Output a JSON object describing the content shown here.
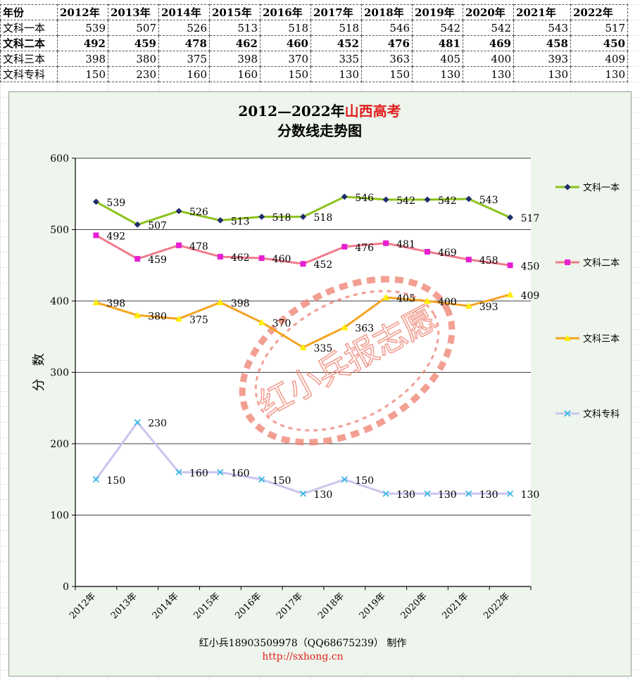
{
  "table": {
    "header": [
      "年份",
      "2012年",
      "2013年",
      "2014年",
      "2015年",
      "2016年",
      "2017年",
      "2018年",
      "2019年",
      "2020年",
      "2021年",
      "2022年"
    ],
    "rows": [
      {
        "label": "文科一本",
        "values": [
          "539",
          "507",
          "526",
          "513",
          "518",
          "518",
          "546",
          "542",
          "542",
          "543",
          "517"
        ]
      },
      {
        "label": "文科二本",
        "values": [
          "492",
          "459",
          "478",
          "462",
          "460",
          "452",
          "476",
          "481",
          "469",
          "458",
          "450"
        ]
      },
      {
        "label": "文科三本",
        "values": [
          "398",
          "380",
          "375",
          "398",
          "370",
          "335",
          "363",
          "405",
          "400",
          "393",
          "409"
        ]
      },
      {
        "label": "文科专科",
        "values": [
          "150",
          "230",
          "160",
          "160",
          "150",
          "130",
          "150",
          "130",
          "130",
          "130",
          "130"
        ]
      }
    ]
  },
  "chart_data": {
    "type": "line",
    "title": "2012—2022年山西高考",
    "title_parts": {
      "lead": "2012—2022年",
      "accent": "山西高考"
    },
    "subtitle": "分数线走势图",
    "ylabel": "分　数",
    "ylim": [
      0,
      600
    ],
    "yticks": [
      "0",
      "100",
      "200",
      "300",
      "400",
      "500",
      "600"
    ],
    "categories": [
      "2012年",
      "2013年",
      "2014年",
      "2015年",
      "2016年",
      "2017年",
      "2018年",
      "2019年",
      "2020年",
      "2021年",
      "2022年"
    ],
    "legend_position": "right",
    "grid": true,
    "series": [
      {
        "name": "文科一本",
        "color": "#8cc21c",
        "marker": "diamond",
        "marker_color": "#1f2d6b",
        "values": [
          539,
          507,
          526,
          513,
          518,
          518,
          546,
          542,
          542,
          543,
          517
        ]
      },
      {
        "name": "文科二本",
        "color": "#f07a8a",
        "marker": "square",
        "marker_color": "#e61fd2",
        "values": [
          492,
          459,
          478,
          462,
          460,
          452,
          476,
          481,
          469,
          458,
          450
        ]
      },
      {
        "name": "文科三本",
        "color": "#f4a320",
        "marker": "triangle",
        "marker_color": "#ffee00",
        "values": [
          398,
          380,
          375,
          398,
          370,
          335,
          363,
          405,
          400,
          393,
          409
        ]
      },
      {
        "name": "文科专科",
        "color": "#c8c6ef",
        "marker": "x",
        "marker_color": "#2bb5e6",
        "values": [
          150,
          230,
          160,
          160,
          150,
          130,
          150,
          130,
          130,
          130,
          130
        ]
      }
    ],
    "stamp_text": "红小兵报志愿",
    "footer": "红小兵18903509978（QQ68675239） 制作",
    "footer_url": "http://sxhong.cn"
  },
  "colors": {
    "chart_bg": "#eef5ec",
    "accent_title": "#e02020",
    "stamp": "#f08878",
    "url": "#e02020"
  }
}
